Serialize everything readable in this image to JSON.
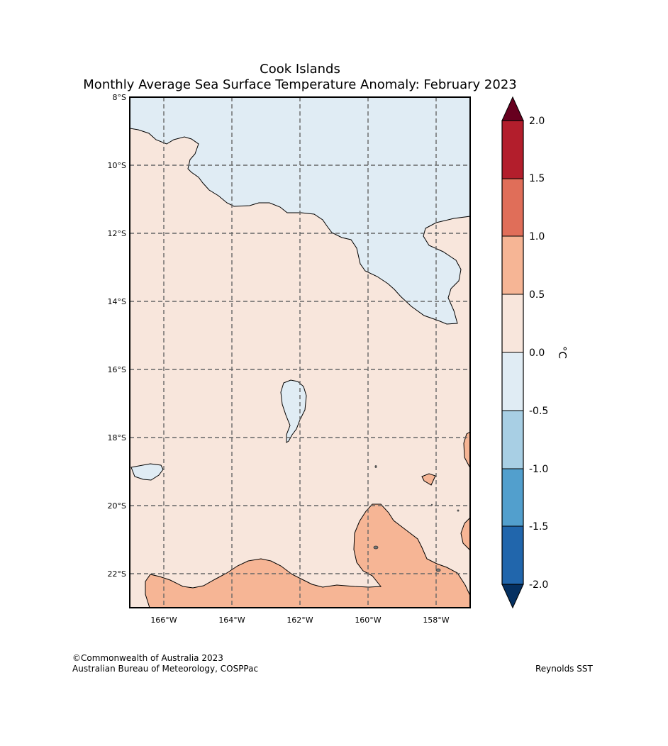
{
  "title": {
    "line1": "Cook Islands",
    "line2": "Monthly Average Sea Surface Temperature Anomaly: February 2023"
  },
  "map": {
    "region": "Cook Islands",
    "latitude_labels": [
      "8°S",
      "10°S",
      "12°S",
      "14°S",
      "16°S",
      "18°S",
      "20°S",
      "22°S"
    ],
    "longitude_labels": [
      "166°W",
      "164°W",
      "162°W",
      "160°W",
      "158°W"
    ],
    "colors": {
      "land_outline": "#000000",
      "gridline": "#666666",
      "anomaly_0_to_0_5": "#f8e6dc",
      "anomaly_m0_5_to_0": "#e0ecf4",
      "anomaly_0_5_to_1_0": "#f6b595"
    }
  },
  "colorbar": {
    "unit": "°C",
    "tick_labels": [
      "2.0",
      "1.5",
      "1.0",
      "0.5",
      "0.0",
      "-0.5",
      "-1.0",
      "-1.5",
      "-2.0"
    ],
    "colors": [
      "#b31e2c",
      "#e06e59",
      "#f6b595",
      "#f8e6dc",
      "#e0ecf4",
      "#a8cfe4",
      "#529fcd",
      "#2166ac"
    ],
    "over_color": "#67001f",
    "under_color": "#053061"
  },
  "footer": {
    "copyright": "©Commonwealth of Australia 2023",
    "agency": "Australian Bureau of Meteorology, COSPPac",
    "dataset": "Reynolds SST"
  }
}
